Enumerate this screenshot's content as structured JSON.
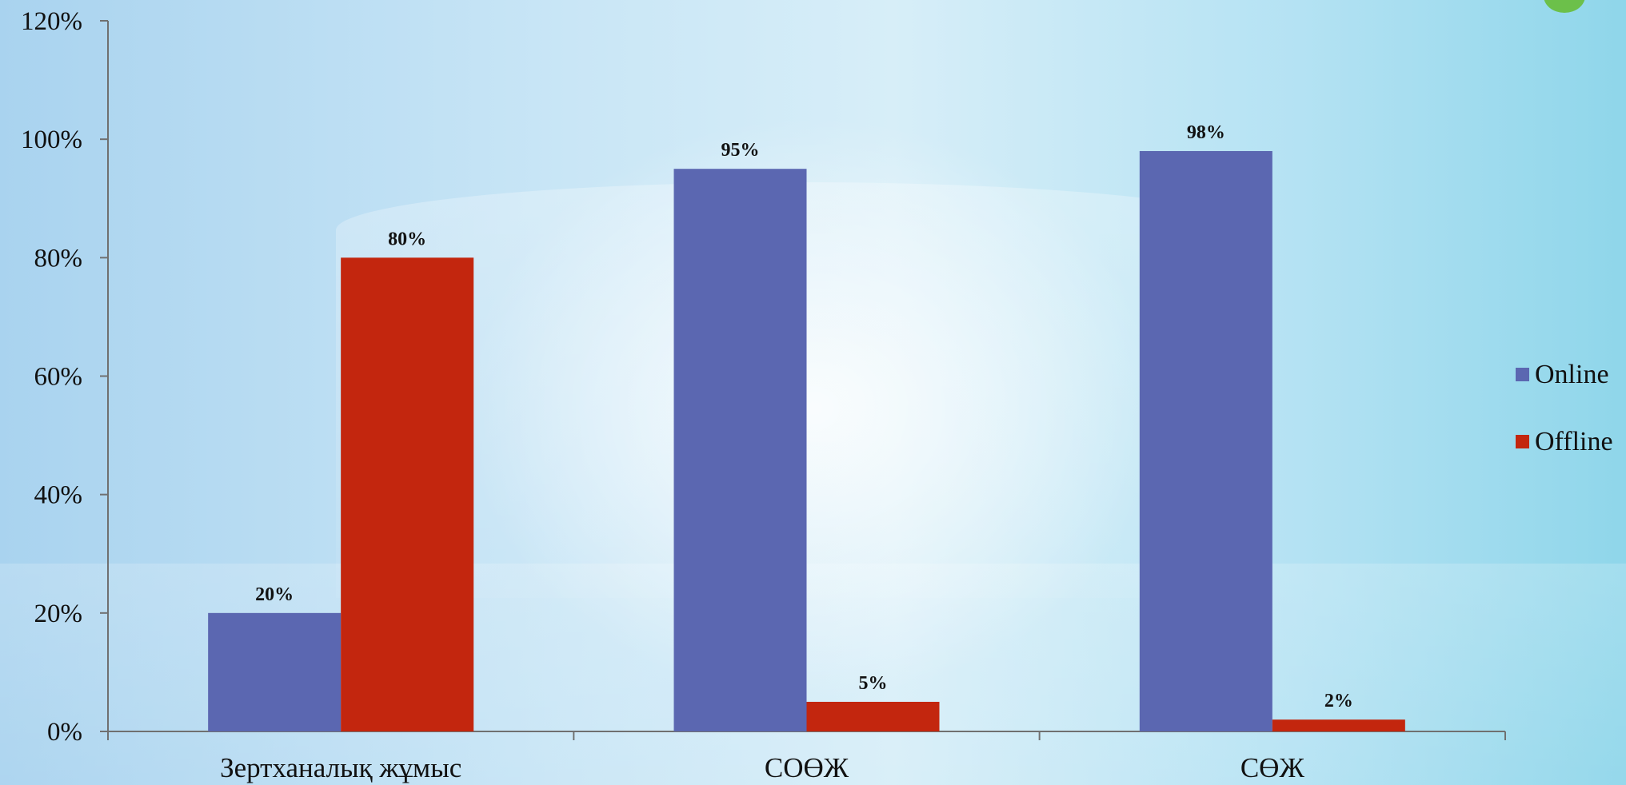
{
  "colors": {
    "online": "#5b67b1",
    "offline": "#c3260e",
    "axis": "#707070"
  },
  "chart_data": {
    "type": "bar",
    "categories": [
      "Зертханалық жұмыс",
      "СОӨЖ",
      "СӨЖ"
    ],
    "series": [
      {
        "name": "Online",
        "values": [
          20,
          95,
          98
        ],
        "labels": [
          "20%",
          "95%",
          "98%"
        ]
      },
      {
        "name": "Offline",
        "values": [
          80,
          5,
          2
        ],
        "labels": [
          "80%",
          "5%",
          "2%"
        ]
      }
    ],
    "ylim": [
      0,
      120
    ],
    "yticks": [
      "0%",
      "20%",
      "40%",
      "60%",
      "80%",
      "100%",
      "120%"
    ],
    "grid": false,
    "legend": "right"
  }
}
